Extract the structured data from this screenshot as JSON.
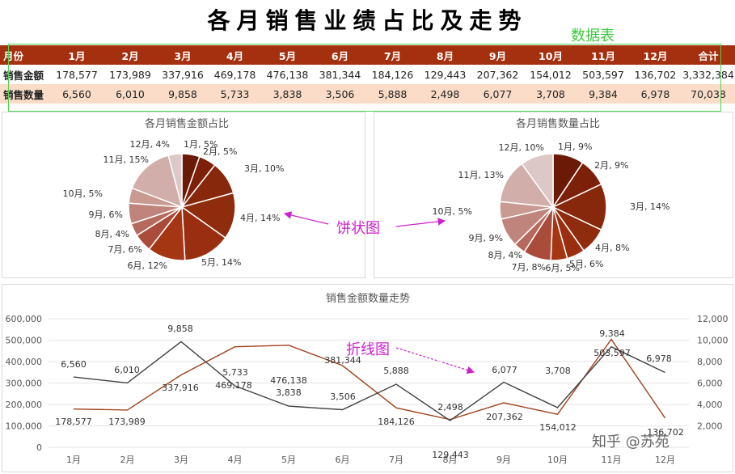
{
  "page_title": "各月销售业绩占比及走势",
  "annotations": {
    "table": "数据表",
    "pie": "饼状图",
    "line": "折线图"
  },
  "table": {
    "header_label": "月份",
    "months": [
      "1月",
      "2月",
      "3月",
      "4月",
      "5月",
      "6月",
      "7月",
      "8月",
      "9月",
      "10月",
      "11月",
      "12月"
    ],
    "total_label": "合计",
    "rows": [
      {
        "label": "销售金额",
        "values": [
          "178,577",
          "173,989",
          "337,916",
          "469,178",
          "476,138",
          "381,344",
          "184,126",
          "129,443",
          "207,362",
          "154,012",
          "503,597",
          "136,702"
        ],
        "total": "3,332,384"
      },
      {
        "label": "销售数量",
        "values": [
          "6,560",
          "6,010",
          "9,858",
          "5,733",
          "3,838",
          "3,506",
          "5,888",
          "2,498",
          "6,077",
          "3,708",
          "9,384",
          "6,978"
        ],
        "total": "70,038"
      }
    ]
  },
  "colors": {
    "header_bg": "#a4300f",
    "row_alt_bg": "#fbdcc8",
    "amount_line": "#a0421e",
    "qty_line": "#404040",
    "pie_slices": [
      "#6b1a08",
      "#7d2009",
      "#87270b",
      "#8e2c0d",
      "#992f10",
      "#a53614",
      "#a94c3b",
      "#b66a5e",
      "#bf857c",
      "#c89a92",
      "#d1aea9",
      "#dcc8c6"
    ]
  },
  "chart_data": [
    {
      "type": "pie",
      "title": "各月销售金额占比",
      "categories": [
        "1月",
        "2月",
        "3月",
        "4月",
        "5月",
        "6月",
        "7月",
        "8月",
        "9月",
        "10月",
        "11月",
        "12月"
      ],
      "values": [
        178577,
        173989,
        337916,
        469178,
        476138,
        381344,
        184126,
        129443,
        207362,
        154012,
        503597,
        136702
      ],
      "labels": [
        "1月, 5%",
        "2月, 5%",
        "3月, 10%",
        "4月, 14%",
        "5月, 14%",
        "6月, 12%",
        "7月, 6%",
        "8月, 4%",
        "9月, 6%",
        "10月, 5%",
        "11月, 15%",
        "12月, 4%"
      ]
    },
    {
      "type": "pie",
      "title": "各月销售数量占比",
      "categories": [
        "1月",
        "2月",
        "3月",
        "4月",
        "5月",
        "6月",
        "7月",
        "8月",
        "9月",
        "10月",
        "11月",
        "12月"
      ],
      "values": [
        6560,
        6010,
        9858,
        5733,
        3838,
        3506,
        5888,
        2498,
        6077,
        3708,
        9384,
        6978
      ],
      "labels": [
        "1月, 9%",
        "2月, 9%",
        "3月, 14%",
        "4月, 8%",
        "5月, 6%",
        "6月, 5%",
        "7月, 8%",
        "8月, 4%",
        "9月, 9%",
        "10月, 5%",
        "11月, 13%",
        "12月, 10%"
      ]
    },
    {
      "type": "line",
      "title": "销售金额数量走势",
      "categories": [
        "1月",
        "2月",
        "3月",
        "4月",
        "5月",
        "6月",
        "7月",
        "8月",
        "9月",
        "10月",
        "11月",
        "12月"
      ],
      "series": [
        {
          "values": [
            178577,
            173989,
            337916,
            469178,
            476138,
            381344,
            184126,
            129443,
            207362,
            154012,
            503597,
            136702
          ],
          "labels": [
            "178,577",
            "173,989",
            "337,916",
            "469,178",
            "476,138",
            "381,344",
            "184,126",
            "129,443",
            "207,362",
            "154,012",
            "503,597",
            "136,702"
          ],
          "axis": "left"
        },
        {
          "values": [
            6560,
            6010,
            9858,
            5733,
            3838,
            3506,
            5888,
            2498,
            6077,
            3708,
            9384,
            6978
          ],
          "labels": [
            "6,560",
            "6,010",
            "9,858",
            "5,733",
            "3,838",
            "3,506",
            "5,888",
            "2,498",
            "6,077",
            "3,708",
            "9,384",
            "6,978"
          ],
          "axis": "right"
        }
      ],
      "ylim_left": [
        0,
        600000
      ],
      "ylim_right": [
        0,
        12000
      ],
      "yticks_left": [
        "0",
        "100,000",
        "200,000",
        "300,000",
        "400,000",
        "500,000",
        "600,000"
      ],
      "yticks_right": [
        "",
        "2,000",
        "4,000",
        "6,000",
        "8,000",
        "10,000",
        "12,000"
      ],
      "grid": true
    }
  ],
  "watermark": "知乎 @苏苑"
}
